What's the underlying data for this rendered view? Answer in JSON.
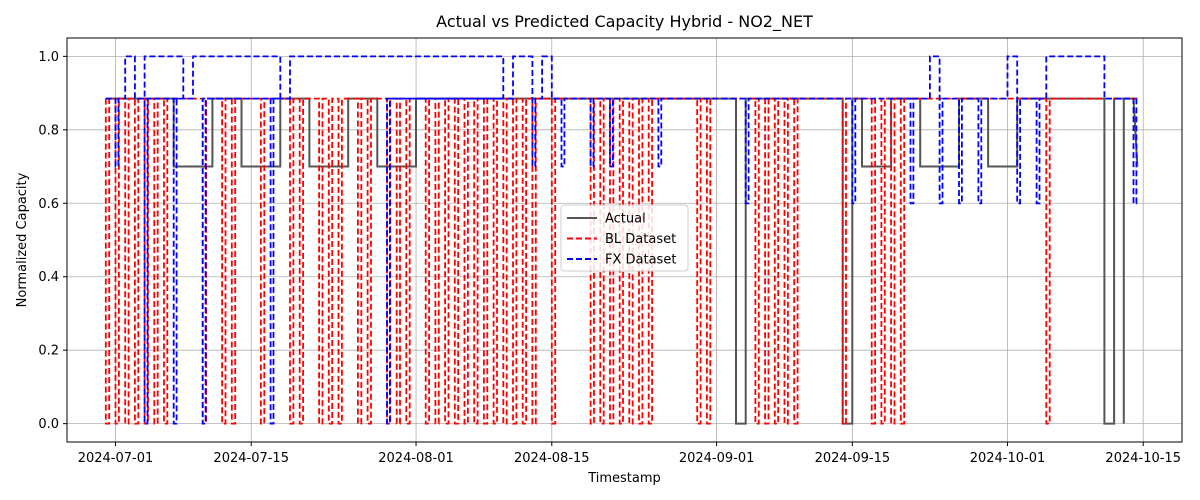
{
  "chart_data": {
    "type": "line",
    "title": "Actual vs Predicted Capacity Hybrid - NO2_NET",
    "xlabel": "Timestamp",
    "ylabel": "Normalized Capacity",
    "x_type": "date",
    "xlim": [
      "2024-06-26",
      "2024-10-19"
    ],
    "ylim": [
      -0.05,
      1.05
    ],
    "x_ticks": [
      "2024-07-01",
      "2024-07-15",
      "2024-08-01",
      "2024-08-15",
      "2024-09-01",
      "2024-09-15",
      "2024-10-01",
      "2024-10-15"
    ],
    "y_ticks": [
      0.0,
      0.2,
      0.4,
      0.6,
      0.8,
      1.0
    ],
    "y_tick_labels": [
      "0.0",
      "0.2",
      "0.4",
      "0.6",
      "0.8",
      "1.0"
    ],
    "grid": true,
    "legend_position": "center",
    "series": [
      {
        "name": "Actual",
        "color": "#555555",
        "style": "solid",
        "points": [
          [
            "2024-06-30",
            0.885
          ],
          [
            "2024-07-07",
            0.885
          ],
          [
            "2024-07-07",
            0.7
          ],
          [
            "2024-07-11",
            0.7
          ],
          [
            "2024-07-11",
            0.885
          ],
          [
            "2024-07-14",
            0.885
          ],
          [
            "2024-07-14",
            0.7
          ],
          [
            "2024-07-18",
            0.7
          ],
          [
            "2024-07-18",
            0.885
          ],
          [
            "2024-07-21",
            0.885
          ],
          [
            "2024-07-21",
            0.7
          ],
          [
            "2024-07-25",
            0.7
          ],
          [
            "2024-07-25",
            0.885
          ],
          [
            "2024-07-28",
            0.885
          ],
          [
            "2024-07-28",
            0.7
          ],
          [
            "2024-08-01",
            0.7
          ],
          [
            "2024-08-01",
            0.885
          ],
          [
            "2024-09-03",
            0.885
          ],
          [
            "2024-09-03",
            0.0
          ],
          [
            "2024-09-04",
            0.0
          ],
          [
            "2024-09-04",
            0.885
          ],
          [
            "2024-09-14",
            0.885
          ],
          [
            "2024-09-14",
            0.0
          ],
          [
            "2024-09-15",
            0.0
          ],
          [
            "2024-09-15",
            0.885
          ],
          [
            "2024-09-16",
            0.885
          ],
          [
            "2024-09-16",
            0.7
          ],
          [
            "2024-09-19",
            0.7
          ],
          [
            "2024-09-19",
            0.885
          ],
          [
            "2024-09-22",
            0.885
          ],
          [
            "2024-09-22",
            0.7
          ],
          [
            "2024-09-26",
            0.7
          ],
          [
            "2024-09-26",
            0.885
          ],
          [
            "2024-09-29",
            0.885
          ],
          [
            "2024-09-29",
            0.7
          ],
          [
            "2024-10-02",
            0.7
          ],
          [
            "2024-10-02",
            0.885
          ],
          [
            "2024-10-11",
            0.885
          ],
          [
            "2024-10-11",
            0.0
          ],
          [
            "2024-10-12",
            0.0
          ],
          [
            "2024-10-12",
            0.885
          ],
          [
            "2024-10-13",
            0.885
          ],
          [
            "2024-10-13",
            0.0
          ],
          [
            "2024-10-13",
            0.0
          ],
          [
            "2024-10-13",
            0.885
          ],
          [
            "2024-10-14",
            0.885
          ],
          [
            "2024-10-14",
            0.7
          ]
        ]
      },
      {
        "name": "BL Dataset",
        "color": "#ff0000",
        "style": "dashed",
        "base": 0.885,
        "drops_to_zero": [
          "2024-06-30",
          "2024-07-01",
          "2024-07-02",
          "2024-07-03",
          "2024-07-04",
          "2024-07-05",
          "2024-07-06",
          "2024-07-10",
          "2024-07-12",
          "2024-07-13",
          "2024-07-16",
          "2024-07-19",
          "2024-07-20",
          "2024-07-22",
          "2024-07-23",
          "2024-07-24",
          "2024-07-26",
          "2024-07-27",
          "2024-07-29",
          "2024-07-30",
          "2024-07-31",
          "2024-08-02",
          "2024-08-03",
          "2024-08-04",
          "2024-08-05",
          "2024-08-06",
          "2024-08-07",
          "2024-08-08",
          "2024-08-09",
          "2024-08-10",
          "2024-08-11",
          "2024-08-12",
          "2024-08-13",
          "2024-08-15",
          "2024-08-19",
          "2024-08-20",
          "2024-08-21",
          "2024-08-22",
          "2024-08-23",
          "2024-08-24",
          "2024-08-25",
          "2024-08-30",
          "2024-08-31",
          "2024-09-05",
          "2024-09-06",
          "2024-09-07",
          "2024-09-08",
          "2024-09-09",
          "2024-09-14",
          "2024-09-17",
          "2024-09-18",
          "2024-09-19",
          "2024-09-20",
          "2024-10-05"
        ]
      },
      {
        "name": "FX Dataset",
        "color": "#0000ff",
        "style": "dashed",
        "base": 0.885,
        "spikes_to_one": [
          [
            "2024-07-02",
            "2024-07-03"
          ],
          [
            "2024-07-04",
            "2024-07-08"
          ],
          [
            "2024-07-09",
            "2024-07-18"
          ],
          [
            "2024-07-19",
            "2024-08-10"
          ],
          [
            "2024-08-11",
            "2024-08-13"
          ],
          [
            "2024-08-14",
            "2024-08-15"
          ],
          [
            "2024-09-23",
            "2024-09-24"
          ],
          [
            "2024-10-01",
            "2024-10-02"
          ],
          [
            "2024-10-05",
            "2024-10-11"
          ]
        ],
        "drops": [
          [
            "2024-07-01",
            0.7
          ],
          [
            "2024-07-04",
            0.0
          ],
          [
            "2024-07-07",
            0.0
          ],
          [
            "2024-07-10",
            0.0
          ],
          [
            "2024-07-17",
            0.0
          ],
          [
            "2024-07-29",
            0.0
          ],
          [
            "2024-08-13",
            0.7
          ],
          [
            "2024-08-16",
            0.7
          ],
          [
            "2024-08-19",
            0.7
          ],
          [
            "2024-08-21",
            0.7
          ],
          [
            "2024-08-26",
            0.7
          ],
          [
            "2024-09-04",
            0.6
          ],
          [
            "2024-09-15",
            0.6
          ],
          [
            "2024-09-21",
            0.6
          ],
          [
            "2024-09-24",
            0.6
          ],
          [
            "2024-09-26",
            0.6
          ],
          [
            "2024-09-28",
            0.6
          ],
          [
            "2024-10-02",
            0.6
          ],
          [
            "2024-10-04",
            0.6
          ],
          [
            "2024-10-14",
            0.6
          ]
        ]
      }
    ]
  }
}
